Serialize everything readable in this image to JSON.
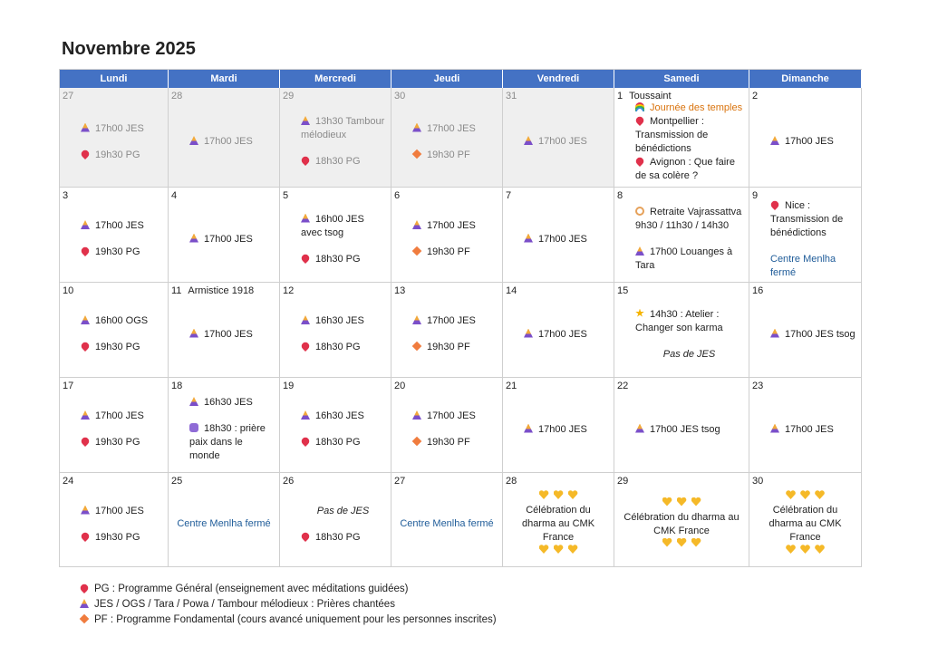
{
  "title": "Novembre 2025",
  "headers": [
    "Lundi",
    "Mardi",
    "Mercredi",
    "Jeudi",
    "Vendredi",
    "Samedi",
    "Dimanche"
  ],
  "weeks": [
    {
      "days": [
        {
          "day": 27,
          "muted": true,
          "entries": [
            {
              "icon": "jes",
              "text": "17h00 JES"
            },
            {
              "icon": "pin",
              "text": "19h30 PG"
            }
          ]
        },
        {
          "day": 28,
          "muted": true,
          "entries": [
            {
              "icon": "jes",
              "text": "17h00 JES"
            }
          ]
        },
        {
          "day": 29,
          "muted": true,
          "entries": [
            {
              "icon": "jes",
              "text": "13h30 Tambour mélodieux"
            },
            {
              "icon": "pin",
              "text": "18h30 PG"
            }
          ]
        },
        {
          "day": 30,
          "muted": true,
          "entries": [
            {
              "icon": "jes",
              "text": "17h00 JES"
            },
            {
              "icon": "pf",
              "text": "19h30 PF"
            }
          ]
        },
        {
          "day": 31,
          "muted": true,
          "entries": [
            {
              "icon": "jes",
              "text": "17h00 JES"
            }
          ]
        },
        {
          "day": 1,
          "title": "Toussaint",
          "compact": true,
          "entries": [
            {
              "icon": "rainbow",
              "text": "Journée des temples",
              "style": "orange"
            },
            {
              "icon": "pin",
              "text": "Montpellier : Transmission de bénédictions"
            },
            {
              "icon": "pin",
              "text": "Avignon : Que faire de sa colère ?"
            }
          ]
        },
        {
          "day": 2,
          "entries": [
            {
              "icon": "jes",
              "text": "17h00 JES"
            }
          ]
        }
      ]
    },
    {
      "days": [
        {
          "day": 3,
          "entries": [
            {
              "icon": "jes",
              "text": "17h00 JES"
            },
            {
              "icon": "pin",
              "text": "19h30 PG"
            }
          ]
        },
        {
          "day": 4,
          "entries": [
            {
              "icon": "jes",
              "text": "17h00 JES"
            }
          ]
        },
        {
          "day": 5,
          "entries": [
            {
              "icon": "jes",
              "text": "16h00 JES avec tsog"
            },
            {
              "icon": "pin",
              "text": "18h30 PG"
            }
          ]
        },
        {
          "day": 6,
          "entries": [
            {
              "icon": "jes",
              "text": "17h00 JES"
            },
            {
              "icon": "pf",
              "text": "19h30 PF"
            }
          ]
        },
        {
          "day": 7,
          "entries": [
            {
              "icon": "jes",
              "text": "17h00 JES"
            }
          ]
        },
        {
          "day": 8,
          "entries": [
            {
              "icon": "retreat",
              "text": "Retraite Vajrassattva 9h30 / 11h30 / 14h30"
            },
            {
              "icon": "jes",
              "text": "17h00 Louanges à Tara"
            }
          ]
        },
        {
          "day": 9,
          "entries": [
            {
              "icon": "pin",
              "text": "Nice : Transmission de bénédictions"
            },
            {
              "text": "Centre Menlha fermé",
              "style": "blue"
            }
          ]
        }
      ]
    },
    {
      "days": [
        {
          "day": 10,
          "entries": [
            {
              "icon": "jes",
              "text": "16h00 OGS"
            },
            {
              "icon": "pin",
              "text": "19h30 PG"
            }
          ]
        },
        {
          "day": 11,
          "title": "Armistice 1918",
          "entries": [
            {
              "icon": "jes",
              "text": "17h00 JES"
            }
          ]
        },
        {
          "day": 12,
          "entries": [
            {
              "icon": "jes",
              "text": "16h30 JES"
            },
            {
              "icon": "pin",
              "text": "18h30 PG"
            }
          ]
        },
        {
          "day": 13,
          "entries": [
            {
              "icon": "jes",
              "text": "17h00 JES"
            },
            {
              "icon": "pf",
              "text": "19h30 PF"
            }
          ]
        },
        {
          "day": 14,
          "entries": [
            {
              "icon": "jes",
              "text": "17h00 JES"
            }
          ]
        },
        {
          "day": 15,
          "entries": [
            {
              "icon": "star",
              "text": "14h30 : Atelier : Changer son karma"
            },
            {
              "text": "Pas de JES",
              "style": "italic"
            }
          ]
        },
        {
          "day": 16,
          "entries": [
            {
              "icon": "jes",
              "text": "17h00 JES tsog"
            }
          ]
        }
      ]
    },
    {
      "days": [
        {
          "day": 17,
          "entries": [
            {
              "icon": "jes",
              "text": "17h00 JES"
            },
            {
              "icon": "pin",
              "text": "19h30 PG"
            }
          ]
        },
        {
          "day": 18,
          "entries": [
            {
              "icon": "jes",
              "text": "16h30 JES"
            },
            {
              "icon": "peace",
              "text": "18h30 : prière paix dans le monde"
            }
          ]
        },
        {
          "day": 19,
          "entries": [
            {
              "icon": "jes",
              "text": "16h30 JES"
            },
            {
              "icon": "pin",
              "text": "18h30 PG"
            }
          ]
        },
        {
          "day": 20,
          "entries": [
            {
              "icon": "jes",
              "text": "17h00 JES"
            },
            {
              "icon": "pf",
              "text": "19h30 PF"
            }
          ]
        },
        {
          "day": 21,
          "entries": [
            {
              "icon": "jes",
              "text": "17h00 JES"
            }
          ]
        },
        {
          "day": 22,
          "entries": [
            {
              "icon": "jes",
              "text": "17h00 JES tsog"
            }
          ]
        },
        {
          "day": 23,
          "entries": [
            {
              "icon": "jes",
              "text": "17h00 JES"
            }
          ]
        }
      ]
    },
    {
      "days": [
        {
          "day": 24,
          "entries": [
            {
              "icon": "jes",
              "text": "17h00 JES"
            },
            {
              "icon": "pin",
              "text": "19h30 PG"
            }
          ]
        },
        {
          "day": 25,
          "align": "center",
          "entries": [
            {
              "text": "Centre Menlha fermé",
              "style": "blue"
            }
          ]
        },
        {
          "day": 26,
          "entries": [
            {
              "text": "Pas de JES",
              "style": "italic"
            },
            {
              "icon": "pin",
              "text": "18h30 PG"
            }
          ]
        },
        {
          "day": 27,
          "align": "center",
          "entries": [
            {
              "text": "Centre Menlha fermé",
              "style": "blue"
            }
          ]
        },
        {
          "day": 28,
          "align": "center",
          "compact": true,
          "entries": [
            {
              "icon": "hearts"
            },
            {
              "text": "Célébration du dharma au CMK France"
            },
            {
              "icon": "hearts"
            }
          ]
        },
        {
          "day": 29,
          "align": "center",
          "compact": true,
          "entries": [
            {
              "icon": "hearts"
            },
            {
              "text": "Célébration du dharma au CMK France"
            },
            {
              "icon": "hearts"
            }
          ]
        },
        {
          "day": 30,
          "align": "center",
          "compact": true,
          "entries": [
            {
              "icon": "hearts"
            },
            {
              "text": "Célébration du dharma au CMK France"
            },
            {
              "icon": "hearts"
            }
          ]
        }
      ]
    }
  ],
  "legend": [
    {
      "icon": "pin",
      "text": "PG : Programme Général (enseignement avec méditations guidées)"
    },
    {
      "icon": "jes",
      "text": "JES / OGS / Tara / Powa / Tambour mélodieux : Prières chantées"
    },
    {
      "icon": "pf",
      "text": "PF : Programme Fondamental (cours avancé uniquement pour les personnes inscrites)"
    }
  ]
}
